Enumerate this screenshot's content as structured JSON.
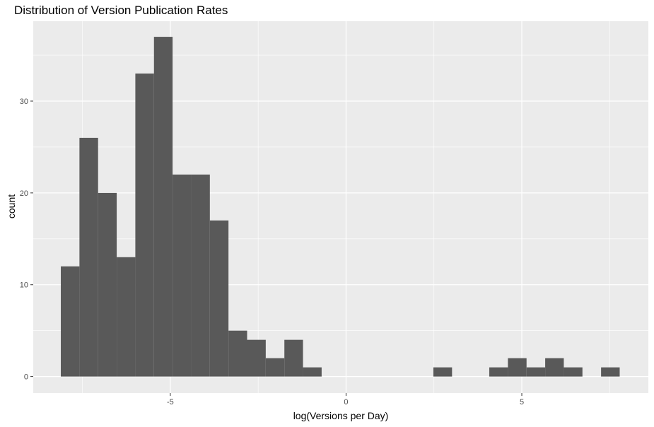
{
  "chart_data": {
    "type": "bar",
    "title": "Distribution of Version Publication Rates",
    "xlabel": "log(Versions per Day)",
    "ylabel": "count",
    "bin_width": 0.53,
    "x_ticks": [
      -5,
      0,
      5
    ],
    "y_ticks": [
      0,
      10,
      20,
      30
    ],
    "xlim": [
      -8.9,
      8.6
    ],
    "ylim": [
      -1.8,
      38.7
    ],
    "bins": [
      {
        "x": -7.85,
        "count": 12
      },
      {
        "x": -7.32,
        "count": 26
      },
      {
        "x": -6.79,
        "count": 20
      },
      {
        "x": -6.26,
        "count": 13
      },
      {
        "x": -5.73,
        "count": 33
      },
      {
        "x": -5.2,
        "count": 37
      },
      {
        "x": -4.67,
        "count": 22
      },
      {
        "x": -4.14,
        "count": 22
      },
      {
        "x": -3.61,
        "count": 17
      },
      {
        "x": -3.08,
        "count": 5
      },
      {
        "x": -2.55,
        "count": 4
      },
      {
        "x": -2.02,
        "count": 2
      },
      {
        "x": -1.49,
        "count": 4
      },
      {
        "x": -0.96,
        "count": 1
      },
      {
        "x": 2.75,
        "count": 1
      },
      {
        "x": 4.34,
        "count": 1
      },
      {
        "x": 4.87,
        "count": 2
      },
      {
        "x": 5.4,
        "count": 1
      },
      {
        "x": 5.93,
        "count": 2
      },
      {
        "x": 6.46,
        "count": 1
      },
      {
        "x": 7.52,
        "count": 1
      }
    ],
    "bar_color": "#595959",
    "panel_background": "#ebebeb",
    "grid_color": "#ffffff",
    "grid": true,
    "legend": "none"
  }
}
